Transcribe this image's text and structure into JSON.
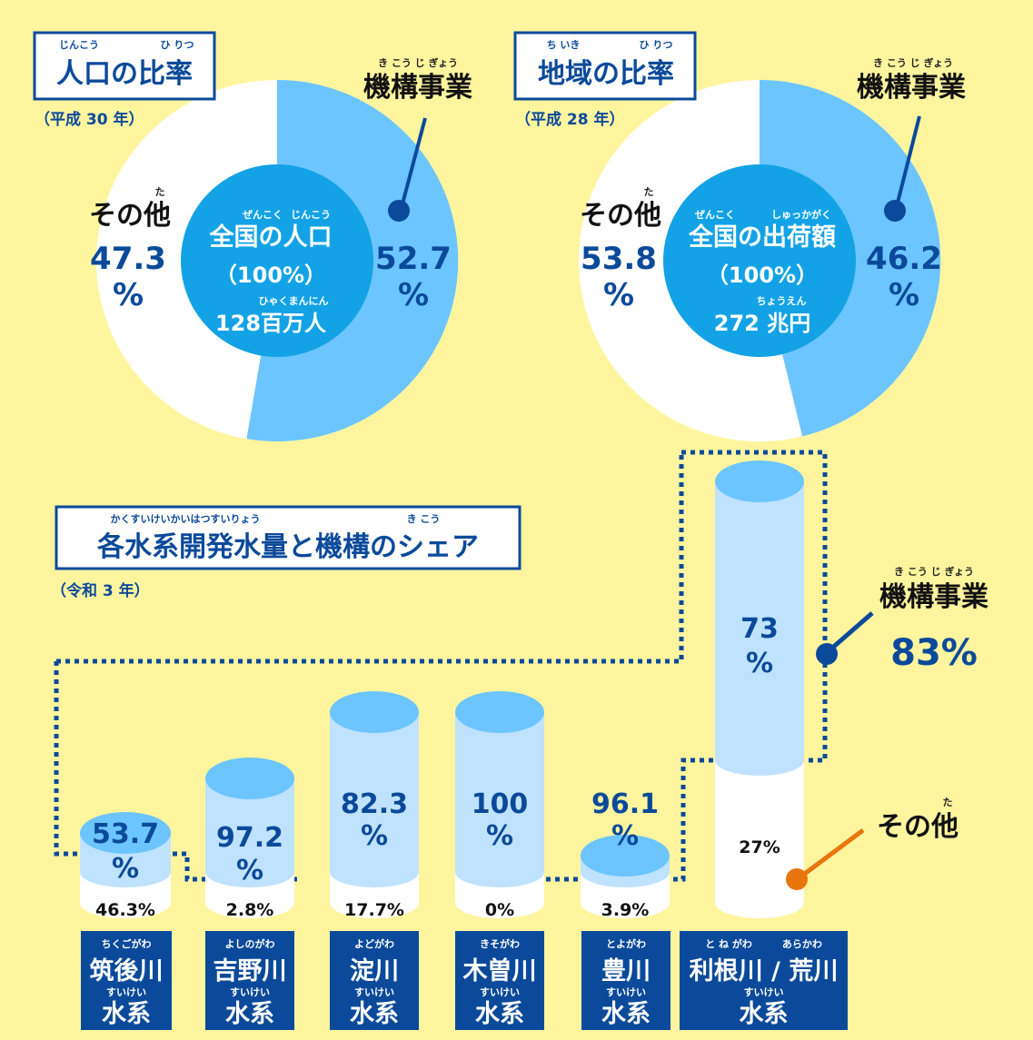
{
  "colors": {
    "background": "#fff59f",
    "navy": "#0b4a9a",
    "kiko_blue": "#6cc5ff",
    "center_blue": "#13a2e6",
    "cyl_body": "#bfe2ff",
    "cyl_top": "#6cc5ff",
    "other": "#ffffff",
    "orange": "#e8750e"
  },
  "chart_data": [
    {
      "type": "pie",
      "title": "人口の比率",
      "title_ruby": [
        "じんこう",
        "ひ りつ"
      ],
      "subtitle": "（平成 30 年）",
      "center": {
        "line1": "全国の人口",
        "line1_ruby": [
          "ぜんこく",
          "じんこう"
        ],
        "line2": "（100%）",
        "line3": "128百万人",
        "line3_ruby": "ひゃくまんにん"
      },
      "slices": [
        {
          "label": "機構事業",
          "ruby": "き こう じ ぎょう",
          "value": 52.7,
          "value_text": "52.7",
          "unit": "%"
        },
        {
          "label": "その他",
          "ruby": "た",
          "value": 47.3,
          "value_text": "47.3",
          "unit": "%"
        }
      ]
    },
    {
      "type": "pie",
      "title": "地域の比率",
      "title_ruby": [
        "ち いき",
        "ひ りつ"
      ],
      "subtitle": "（平成 28 年）",
      "center": {
        "line1": "全国の出荷額",
        "line1_ruby": [
          "ぜんこく",
          "しゅっかがく"
        ],
        "line2": "（100%）",
        "line3": "272 兆円",
        "line3_ruby": "ちょうえん"
      },
      "slices": [
        {
          "label": "機構事業",
          "ruby": "き こう じ ぎょう",
          "value": 46.2,
          "value_text": "46.2",
          "unit": "%"
        },
        {
          "label": "その他",
          "ruby": "た",
          "value": 53.8,
          "value_text": "53.8",
          "unit": "%"
        }
      ]
    },
    {
      "type": "bar",
      "title": "各水系開発水量と機構のシェア",
      "title_ruby": [
        "かくすいけいかいはつすいりょう",
        "き こう"
      ],
      "subtitle": "（令和 3 年）",
      "total_label": "機構事業",
      "total_ruby": "き こう じ ぎょう",
      "total_value": "83%",
      "other_label": "その他",
      "other_ruby": "た",
      "categories": [
        {
          "name": "筑後川",
          "ruby": "ちくごがわ",
          "suffix": "水系",
          "suffix_ruby": "すいけい",
          "kiko": 53.7,
          "kiko_text": "53.7",
          "other_text": "46.3%"
        },
        {
          "name": "吉野川",
          "ruby": "よしのがわ",
          "suffix": "水系",
          "suffix_ruby": "すいけい",
          "kiko": 97.2,
          "kiko_text": "97.2",
          "other_text": "2.8%"
        },
        {
          "name": "淀川",
          "ruby": "よどがわ",
          "suffix": "水系",
          "suffix_ruby": "すいけい",
          "kiko": 82.3,
          "kiko_text": "82.3",
          "other_text": "17.7%"
        },
        {
          "name": "木曽川",
          "ruby": "きそがわ",
          "suffix": "水系",
          "suffix_ruby": "すいけい",
          "kiko": 100,
          "kiko_text": "100",
          "other_text": "0%"
        },
        {
          "name": "豊川",
          "ruby": "とよがわ",
          "suffix": "水系",
          "suffix_ruby": "すいけい",
          "kiko": 96.1,
          "kiko_text": "96.1",
          "other_text": "3.9%"
        },
        {
          "name": "利根川 / 荒川",
          "ruby": "と ね がわ　　　あらかわ",
          "suffix": "水系",
          "suffix_ruby": "すいけい",
          "kiko": 73,
          "kiko_text": "73",
          "other_text": "27%"
        }
      ],
      "unit": "%"
    }
  ]
}
